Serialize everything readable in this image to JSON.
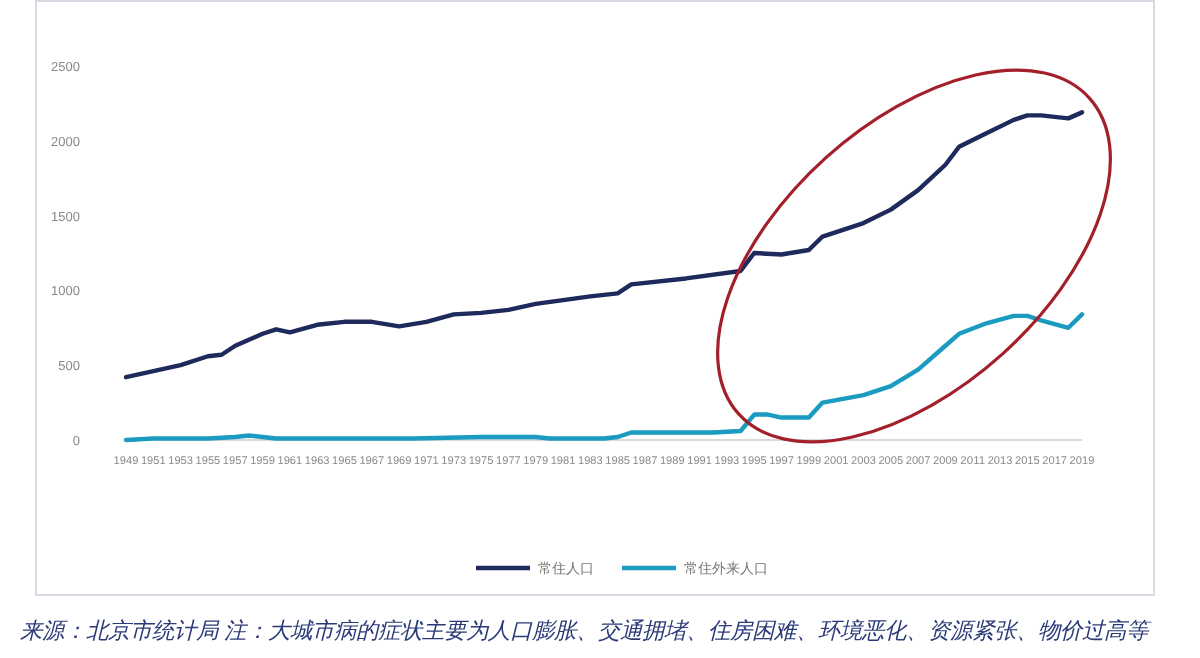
{
  "chart_data": {
    "type": "line",
    "xlim": [
      1949,
      2019
    ],
    "xticks": [
      1949,
      1951,
      1953,
      1955,
      1957,
      1959,
      1961,
      1963,
      1965,
      1967,
      1969,
      1971,
      1973,
      1975,
      1977,
      1979,
      1981,
      1983,
      1985,
      1987,
      1989,
      1991,
      1993,
      1995,
      1997,
      1999,
      2001,
      2003,
      2005,
      2007,
      2009,
      2011,
      2013,
      2015,
      2017,
      2019
    ],
    "ylim": [
      0,
      2500
    ],
    "yticks": [
      0,
      500,
      1000,
      1500,
      2000,
      2500
    ],
    "grid": false,
    "legend": "bottom",
    "marker": "none",
    "line_style": "solid",
    "series": [
      {
        "name": "常住人口",
        "color": "#1f2a5c",
        "x": [
          1949,
          1953,
          1955,
          1956,
          1957,
          1959,
          1960,
          1961,
          1963,
          1965,
          1967,
          1969,
          1971,
          1973,
          1975,
          1977,
          1979,
          1983,
          1985,
          1986,
          1990,
          1994,
          1995,
          1997,
          1999,
          2000,
          2003,
          2005,
          2007,
          2009,
          2010,
          2012,
          2014,
          2015,
          2016,
          2017,
          2018,
          2019
        ],
        "values": [
          420,
          500,
          560,
          570,
          630,
          710,
          740,
          720,
          770,
          790,
          790,
          760,
          790,
          840,
          850,
          870,
          910,
          960,
          980,
          1040,
          1080,
          1130,
          1250,
          1240,
          1270,
          1360,
          1450,
          1540,
          1670,
          1840,
          1960,
          2050,
          2140,
          2170,
          2170,
          2160,
          2150,
          2190
        ]
      },
      {
        "name": "常住外来人口",
        "color": "#1b9bc0",
        "x": [
          1949,
          1951,
          1953,
          1955,
          1957,
          1958,
          1959,
          1960,
          1965,
          1970,
          1975,
          1979,
          1980,
          1984,
          1985,
          1986,
          1988,
          1989,
          1992,
          1994,
          1995,
          1996,
          1997,
          1999,
          2000,
          2003,
          2005,
          2007,
          2009,
          2010,
          2012,
          2014,
          2015,
          2016,
          2018,
          2019
        ],
        "values": [
          0,
          10,
          10,
          10,
          20,
          30,
          20,
          10,
          10,
          10,
          20,
          20,
          10,
          10,
          20,
          50,
          50,
          50,
          50,
          60,
          170,
          170,
          150,
          150,
          250,
          300,
          360,
          470,
          630,
          710,
          780,
          830,
          830,
          800,
          750,
          840
        ]
      }
    ],
    "annotations": [
      "来源：北京市统计局  注：大城市病的症状主要为人口膨胀、交通拥堵、住房困难、环境恶化、资源紧张、物价过高等"
    ]
  }
}
